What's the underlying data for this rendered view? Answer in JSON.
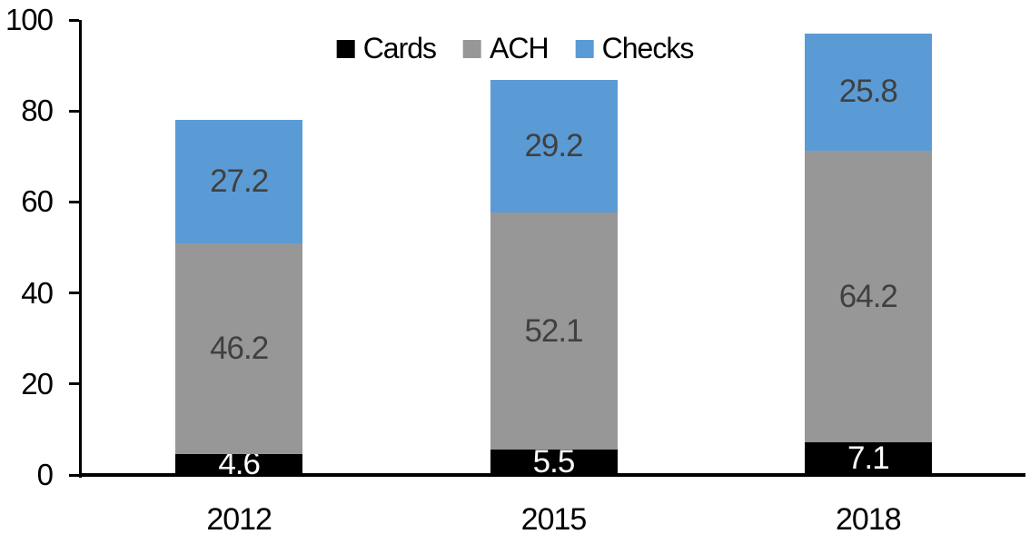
{
  "chart_data": {
    "type": "bar",
    "stacked": true,
    "title": "",
    "categories": [
      "2012",
      "2015",
      "2018"
    ],
    "series": [
      {
        "name": "Cards",
        "color": "#000000",
        "label_color": "#FFFFFF",
        "values": [
          4.6,
          5.5,
          7.1
        ]
      },
      {
        "name": "ACH",
        "color": "#979797",
        "label_color": "#404040",
        "values": [
          46.2,
          52.1,
          64.2
        ]
      },
      {
        "name": "Checks",
        "color": "#5B9BD5",
        "label_color": "#404040",
        "values": [
          27.2,
          29.2,
          25.8
        ]
      }
    ],
    "ylim": [
      0,
      100
    ],
    "yticks": [
      0,
      20,
      40,
      60,
      80,
      100
    ],
    "legend_position": "top",
    "grid": false,
    "axis_color": "#000000",
    "background_color": "#FFFFFF"
  }
}
